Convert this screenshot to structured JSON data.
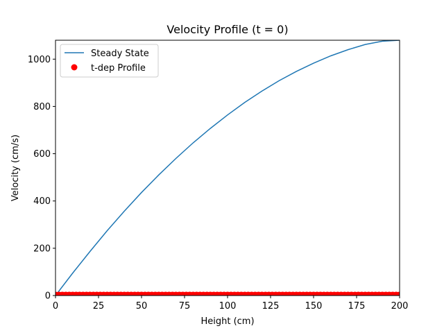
{
  "chart_data": {
    "type": "line",
    "title": "Velocity Profile (t = 0)",
    "xlabel": "Height (cm)",
    "ylabel": "Velocity (cm/s)",
    "xlim": [
      0,
      200
    ],
    "ylim": [
      0,
      1080
    ],
    "xticks": [
      0,
      25,
      50,
      75,
      100,
      125,
      150,
      175,
      200
    ],
    "yticks": [
      0,
      200,
      400,
      600,
      800,
      1000
    ],
    "grid": false,
    "legend_position": "upper-left",
    "series": [
      {
        "name": "Steady State",
        "kind": "line",
        "color": "#1f77b4",
        "x": [
          0,
          10,
          20,
          30,
          40,
          50,
          60,
          70,
          80,
          90,
          100,
          110,
          120,
          130,
          140,
          150,
          160,
          170,
          180,
          190,
          200
        ],
        "y": [
          0,
          95,
          186,
          274,
          357,
          436,
          510,
          580,
          646,
          707,
          764,
          817,
          865,
          909,
          948,
          983,
          1014,
          1040,
          1062,
          1076,
          1080
        ]
      },
      {
        "name": "t-dep Profile",
        "kind": "scatter",
        "color": "#ff0000",
        "x": [
          0,
          2,
          4,
          6,
          8,
          10,
          12,
          14,
          16,
          18,
          20,
          22,
          24,
          26,
          28,
          30,
          32,
          34,
          36,
          38,
          40,
          42,
          44,
          46,
          48,
          50,
          52,
          54,
          56,
          58,
          60,
          62,
          64,
          66,
          68,
          70,
          72,
          74,
          76,
          78,
          80,
          82,
          84,
          86,
          88,
          90,
          92,
          94,
          96,
          98,
          100,
          102,
          104,
          106,
          108,
          110,
          112,
          114,
          116,
          118,
          120,
          122,
          124,
          126,
          128,
          130,
          132,
          134,
          136,
          138,
          140,
          142,
          144,
          146,
          148,
          150,
          152,
          154,
          156,
          158,
          160,
          162,
          164,
          166,
          168,
          170,
          172,
          174,
          176,
          178,
          180,
          182,
          184,
          186,
          188,
          190,
          192,
          194,
          196,
          198,
          200
        ],
        "y": [
          0,
          0,
          0,
          0,
          0,
          0,
          0,
          0,
          0,
          0,
          0,
          0,
          0,
          0,
          0,
          0,
          0,
          0,
          0,
          0,
          0,
          0,
          0,
          0,
          0,
          0,
          0,
          0,
          0,
          0,
          0,
          0,
          0,
          0,
          0,
          0,
          0,
          0,
          0,
          0,
          0,
          0,
          0,
          0,
          0,
          0,
          0,
          0,
          0,
          0,
          0,
          0,
          0,
          0,
          0,
          0,
          0,
          0,
          0,
          0,
          0,
          0,
          0,
          0,
          0,
          0,
          0,
          0,
          0,
          0,
          0,
          0,
          0,
          0,
          0,
          0,
          0,
          0,
          0,
          0,
          0,
          0,
          0,
          0,
          0,
          0,
          0,
          0,
          0,
          0,
          0,
          0,
          0,
          0,
          0,
          0,
          0,
          0,
          0,
          0,
          0
        ]
      }
    ]
  }
}
